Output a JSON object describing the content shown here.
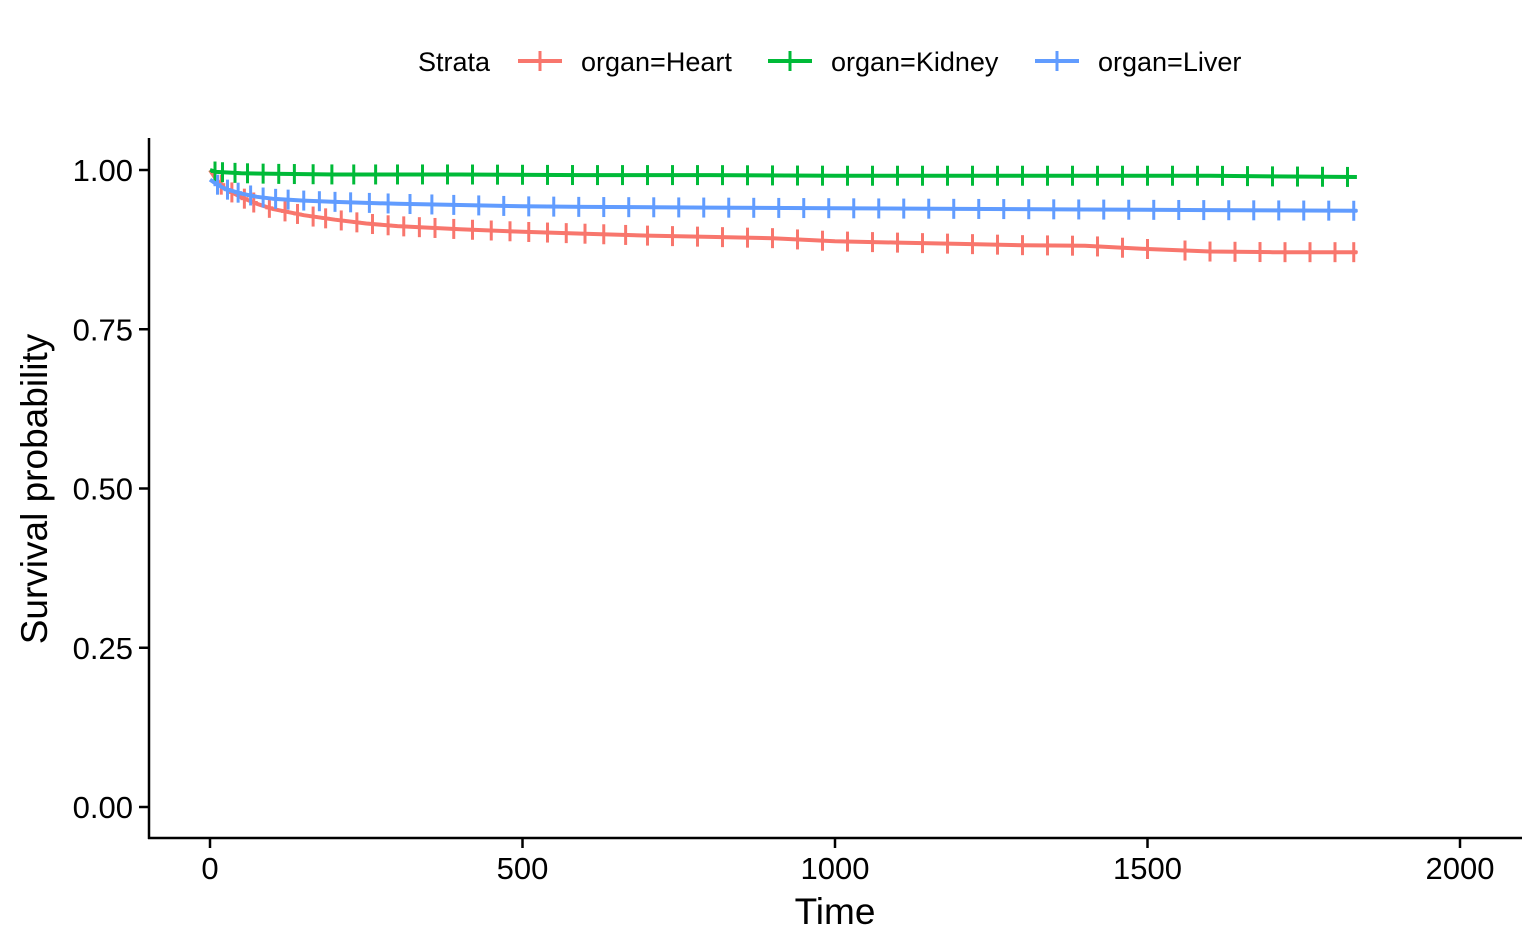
{
  "chart_data": {
    "type": "line",
    "xlabel": "Time",
    "ylabel": "Survival probability",
    "xlim": [
      -100,
      2100
    ],
    "ylim": [
      -0.05,
      1.05
    ],
    "x_ticks": [
      0,
      500,
      1000,
      1500,
      2000
    ],
    "x_tick_labels": [
      "0",
      "500",
      "1000",
      "1500",
      "2000"
    ],
    "y_ticks": [
      0,
      0.25,
      0.5,
      0.75,
      1.0
    ],
    "y_tick_labels": [
      "0.00",
      "0.25",
      "0.50",
      "0.75",
      "1.00"
    ],
    "grid": false,
    "legend": {
      "title": "Strata",
      "placement": "top"
    },
    "series": [
      {
        "name": "organ=Heart",
        "color": "#F8766D",
        "x": [
          0,
          10,
          25,
          50,
          75,
          100,
          150,
          200,
          250,
          300,
          400,
          500,
          600,
          700,
          800,
          900,
          1000,
          1100,
          1200,
          1300,
          1400,
          1500,
          1600,
          1700,
          1835
        ],
        "y": [
          1.0,
          0.985,
          0.97,
          0.957,
          0.947,
          0.939,
          0.929,
          0.922,
          0.916,
          0.912,
          0.907,
          0.903,
          0.9,
          0.897,
          0.895,
          0.893,
          0.888,
          0.886,
          0.884,
          0.882,
          0.881,
          0.876,
          0.872,
          0.871,
          0.871
        ],
        "censor_x": [
          18,
          35,
          55,
          70,
          95,
          120,
          140,
          165,
          185,
          210,
          235,
          260,
          285,
          310,
          335,
          360,
          390,
          420,
          450,
          480,
          510,
          540,
          570,
          600,
          630,
          665,
          700,
          740,
          780,
          820,
          860,
          900,
          940,
          980,
          1020,
          1060,
          1100,
          1140,
          1180,
          1220,
          1260,
          1300,
          1340,
          1380,
          1420,
          1460,
          1500,
          1560,
          1600,
          1640,
          1680,
          1720,
          1760,
          1800,
          1830
        ]
      },
      {
        "name": "organ=Kidney",
        "color": "#00BA38",
        "x": [
          0,
          10,
          50,
          100,
          200,
          400,
          600,
          800,
          1000,
          1200,
          1400,
          1600,
          1700,
          1835
        ],
        "y": [
          1.0,
          0.997,
          0.995,
          0.994,
          0.993,
          0.993,
          0.992,
          0.992,
          0.991,
          0.991,
          0.991,
          0.991,
          0.99,
          0.989
        ],
        "censor_x": [
          8,
          20,
          40,
          60,
          85,
          110,
          135,
          165,
          195,
          230,
          265,
          300,
          340,
          380,
          420,
          460,
          500,
          540,
          580,
          620,
          660,
          700,
          740,
          780,
          820,
          860,
          900,
          940,
          980,
          1020,
          1060,
          1100,
          1140,
          1180,
          1220,
          1260,
          1300,
          1340,
          1380,
          1420,
          1460,
          1500,
          1540,
          1580,
          1620,
          1660,
          1700,
          1740,
          1780,
          1820
        ]
      },
      {
        "name": "organ=Liver",
        "color": "#619CFF",
        "x": [
          0,
          10,
          25,
          50,
          75,
          100,
          150,
          200,
          300,
          400,
          500,
          600,
          800,
          1000,
          1200,
          1400,
          1600,
          1835
        ],
        "y": [
          0.985,
          0.978,
          0.97,
          0.963,
          0.958,
          0.955,
          0.952,
          0.95,
          0.947,
          0.945,
          0.943,
          0.942,
          0.941,
          0.94,
          0.939,
          0.938,
          0.937,
          0.936
        ],
        "censor_x": [
          12,
          28,
          45,
          65,
          85,
          105,
          125,
          150,
          175,
          200,
          225,
          255,
          285,
          320,
          355,
          390,
          430,
          470,
          510,
          550,
          590,
          630,
          670,
          710,
          750,
          790,
          830,
          870,
          910,
          950,
          990,
          1030,
          1070,
          1110,
          1150,
          1190,
          1230,
          1270,
          1310,
          1350,
          1390,
          1430,
          1470,
          1510,
          1550,
          1590,
          1630,
          1670,
          1710,
          1750,
          1790,
          1830
        ]
      }
    ]
  }
}
